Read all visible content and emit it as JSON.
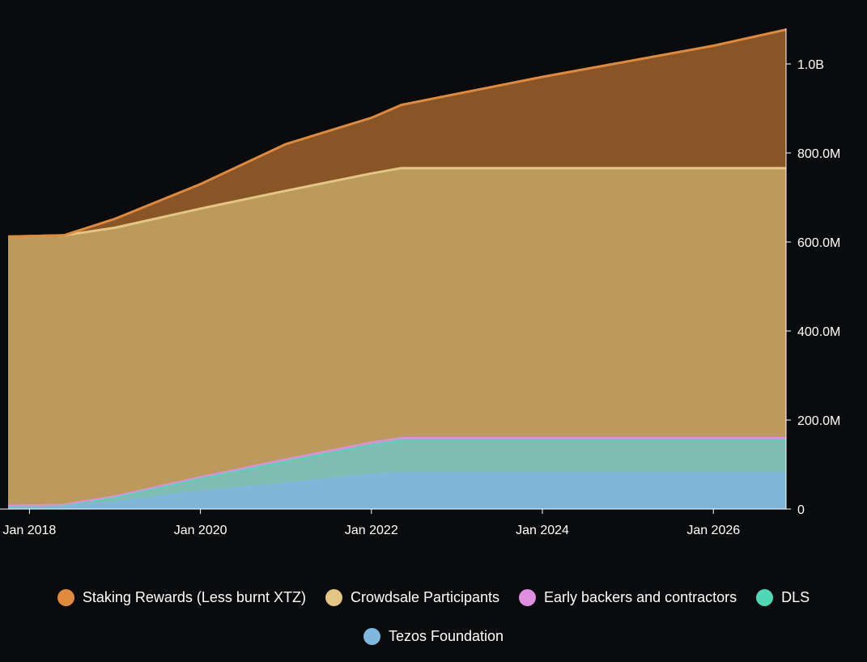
{
  "chart_data": {
    "type": "area",
    "stacked": true,
    "x_unit": "year",
    "x": [
      2017.75,
      2018.4,
      2019.0,
      2020.0,
      2021.0,
      2022.0,
      2022.35,
      2024.0,
      2026.0,
      2026.85
    ],
    "x_range": [
      2017.75,
      2026.85
    ],
    "xticks": [
      2018,
      2020,
      2022,
      2024,
      2026
    ],
    "xtick_labels": [
      "Jan 2018",
      "Jan 2020",
      "Jan 2022",
      "Jan 2024",
      "Jan 2026"
    ],
    "ylim": [
      0,
      1080000000
    ],
    "yticks": [
      0,
      200000000,
      400000000,
      600000000,
      800000000,
      1000000000
    ],
    "ytick_labels": [
      "0",
      "200.0M",
      "400.0M",
      "600.0M",
      "800.0M",
      "1.0B"
    ],
    "series": [
      {
        "name": "Tezos Foundation",
        "color": "#7fb8de",
        "values": [
          6000000,
          6000000,
          16000000,
          40000000,
          58000000,
          78000000,
          82000000,
          82000000,
          82000000,
          82000000
        ]
      },
      {
        "name": "DLS",
        "color": "#4fd8b8",
        "values": [
          0,
          2000000,
          10000000,
          28000000,
          49000000,
          66000000,
          72000000,
          72000000,
          72000000,
          72000000
        ]
      },
      {
        "name": "Early backers and contractors",
        "color": "#e08ee0",
        "values": [
          2000000,
          2000000,
          3000000,
          4000000,
          5000000,
          6000000,
          6000000,
          6000000,
          6000000,
          6000000
        ]
      },
      {
        "name": "Crowdsale Participants",
        "color": "#e3c584",
        "values": [
          604000000,
          605000000,
          603000000,
          603000000,
          603000000,
          604000000,
          606000000,
          606000000,
          606000000,
          606000000
        ]
      },
      {
        "name": "Staking Rewards (Less burnt XTZ)",
        "color": "#e08a3c",
        "values": [
          0,
          0,
          20000000,
          55000000,
          105000000,
          125000000,
          142000000,
          205000000,
          275000000,
          311000000
        ]
      }
    ],
    "legend": {
      "position": "bottom",
      "rows": [
        [
          "Staking Rewards (Less burnt XTZ)",
          "Crowdsale Participants",
          "Early backers and contractors",
          "DLS"
        ],
        [
          "Tezos Foundation"
        ]
      ]
    },
    "colors": {
      "background": "#0a0b0d",
      "axis": "#ffffff",
      "fill_staking": "#8a5526",
      "fill_crowdsale": "#bc9a5c",
      "fill_early": "#c597c9",
      "fill_dls": "#7fbdb3",
      "fill_foundation": "#7fb6d8"
    }
  },
  "legend": {
    "items": [
      {
        "label": "Staking Rewards (Less burnt XTZ)",
        "color": "#e08a3c"
      },
      {
        "label": "Crowdsale Participants",
        "color": "#e3c584"
      },
      {
        "label": "Early backers and contractors",
        "color": "#e08ee0"
      },
      {
        "label": "DLS",
        "color": "#4fd8b8"
      },
      {
        "label": "Tezos Foundation",
        "color": "#7fb8de"
      }
    ]
  }
}
